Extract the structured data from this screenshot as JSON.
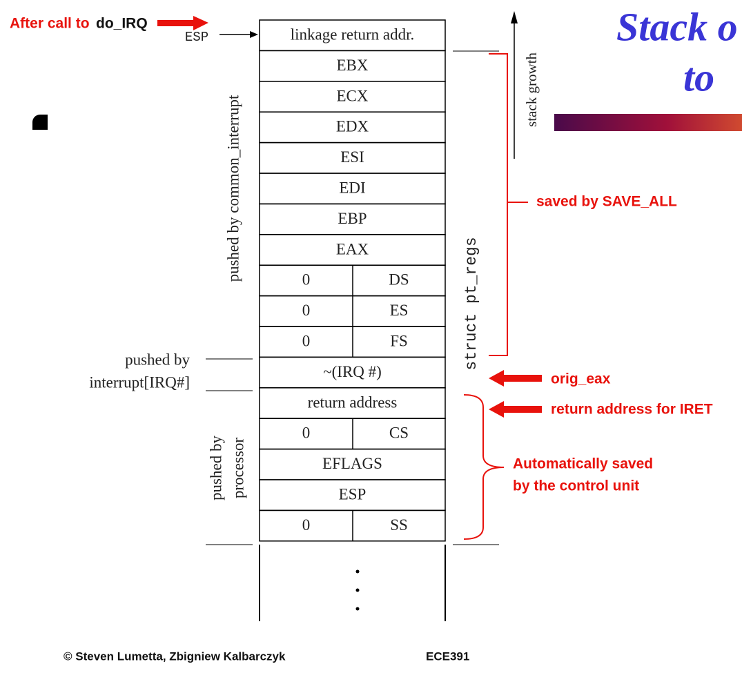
{
  "header": {
    "prefix": "After call to",
    "function": "do_IRQ"
  },
  "title": {
    "line1": "Stack o",
    "line2": "to"
  },
  "esp_label": "ESP",
  "stack": {
    "rows": [
      [
        "linkage return addr."
      ],
      [
        "EBX"
      ],
      [
        "ECX"
      ],
      [
        "EDX"
      ],
      [
        "ESI"
      ],
      [
        "EDI"
      ],
      [
        "EBP"
      ],
      [
        "EAX"
      ],
      [
        "0",
        "DS"
      ],
      [
        "0",
        "ES"
      ],
      [
        "0",
        "FS"
      ],
      [
        "~(IRQ #)"
      ],
      [
        "return address"
      ],
      [
        "0",
        "CS"
      ],
      [
        "EFLAGS"
      ],
      [
        "ESP"
      ],
      [
        "0",
        "SS"
      ]
    ]
  },
  "side_labels": {
    "common_interrupt": "pushed by common_interrupt",
    "interrupt": [
      "pushed by",
      "interrupt[IRQ#]"
    ],
    "processor": [
      "pushed by",
      "processor"
    ]
  },
  "stack_growth": "stack growth",
  "struct_label": "struct pt_regs",
  "annotations": {
    "save_all": "saved by SAVE_ALL",
    "orig_eax": "orig_eax",
    "iret": "return address for  IRET",
    "auto": [
      "Automatically saved",
      "by the control unit"
    ]
  },
  "footer": {
    "authors": "© Steven Lumetta, Zbigniew Kalbarczyk",
    "course": "ECE391"
  }
}
